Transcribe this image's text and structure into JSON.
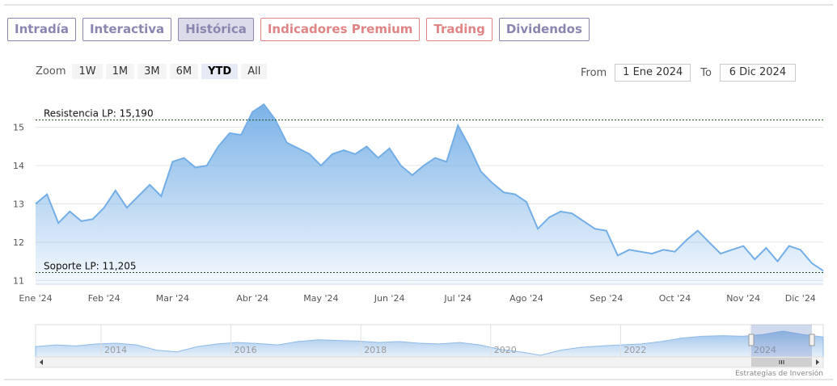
{
  "tabs": [
    {
      "label": "Intradía",
      "color": "#8a86b0"
    },
    {
      "label": "Interactiva",
      "color": "#8a86b0"
    },
    {
      "label": "Histórica",
      "color": "#8a86b0"
    },
    {
      "label": "Indicadores Premium",
      "color": "#e08585"
    },
    {
      "label": "Trading",
      "color": "#e08585"
    },
    {
      "label": "Dividendos",
      "color": "#8a86b0"
    }
  ],
  "active_tab": 2,
  "zoom": {
    "label": "Zoom",
    "buttons": [
      "1W",
      "1M",
      "3M",
      "6M",
      "YTD",
      "All"
    ],
    "selected": 4
  },
  "range": {
    "from_label": "From",
    "from": "1 Ene 2024",
    "to_label": "To",
    "to": "6 Dic 2024"
  },
  "chart_data": {
    "type": "area",
    "categories": [
      "Ene '24",
      null,
      null,
      null,
      null,
      null,
      "Feb '24",
      null,
      null,
      null,
      null,
      null,
      "Mar '24",
      null,
      null,
      null,
      null,
      null,
      null,
      "Abr '24",
      null,
      null,
      null,
      null,
      null,
      "May '24",
      null,
      null,
      null,
      null,
      null,
      "Jun '24",
      null,
      null,
      null,
      null,
      null,
      "Jul '24",
      null,
      null,
      null,
      null,
      null,
      "Ago '24",
      null,
      null,
      null,
      null,
      null,
      null,
      "Sep '24",
      null,
      null,
      null,
      null,
      null,
      "Oct '24",
      null,
      null,
      null,
      null,
      null,
      "Nov '24",
      null,
      null,
      null,
      null,
      "Dic '24",
      null,
      null
    ],
    "values": [
      13.0,
      13.25,
      12.5,
      12.8,
      12.55,
      12.6,
      12.9,
      13.35,
      12.9,
      13.2,
      13.5,
      13.2,
      14.1,
      14.2,
      13.95,
      14.0,
      14.5,
      14.85,
      14.8,
      15.4,
      15.6,
      15.2,
      14.6,
      14.45,
      14.3,
      14.0,
      14.3,
      14.4,
      14.3,
      14.5,
      14.2,
      14.45,
      14.0,
      13.75,
      14.0,
      14.2,
      14.1,
      15.05,
      14.5,
      13.85,
      13.55,
      13.3,
      13.25,
      13.05,
      12.35,
      12.65,
      12.8,
      12.75,
      12.55,
      12.35,
      12.3,
      11.65,
      11.8,
      11.75,
      11.7,
      11.8,
      11.75,
      12.05,
      12.3,
      12.0,
      11.7,
      11.8,
      11.9,
      11.55,
      11.85,
      11.5,
      11.9,
      11.8,
      11.45,
      11.25
    ],
    "color": "#74aee6",
    "ylim": [
      10.9,
      15.9
    ],
    "yticks": [
      11,
      12,
      13,
      14,
      15
    ],
    "grid": true,
    "annotations": [
      {
        "label": "Resistencia LP: 15,190",
        "value": 15.19
      },
      {
        "label": "Soporte LP: 11,205",
        "value": 11.205
      }
    ]
  },
  "navigator": {
    "labels": [
      "2014",
      "2016",
      "2018",
      "2020",
      "2022",
      "2024"
    ],
    "values": [
      13,
      13.5,
      13.2,
      13.8,
      14,
      13.5,
      12,
      11.5,
      13,
      13.8,
      14.2,
      13.9,
      13.5,
      14.5,
      15,
      14.8,
      14.6,
      14.2,
      14.5,
      14.0,
      13.8,
      14.2,
      13.5,
      12.2,
      11.5,
      10.5,
      12,
      12.8,
      13.2,
      13.5,
      13.8,
      14.5,
      15.5,
      16,
      16.2,
      16,
      16.5,
      17.5,
      16.5,
      15.8
    ]
  },
  "credit": "Estrategias de Inversión"
}
